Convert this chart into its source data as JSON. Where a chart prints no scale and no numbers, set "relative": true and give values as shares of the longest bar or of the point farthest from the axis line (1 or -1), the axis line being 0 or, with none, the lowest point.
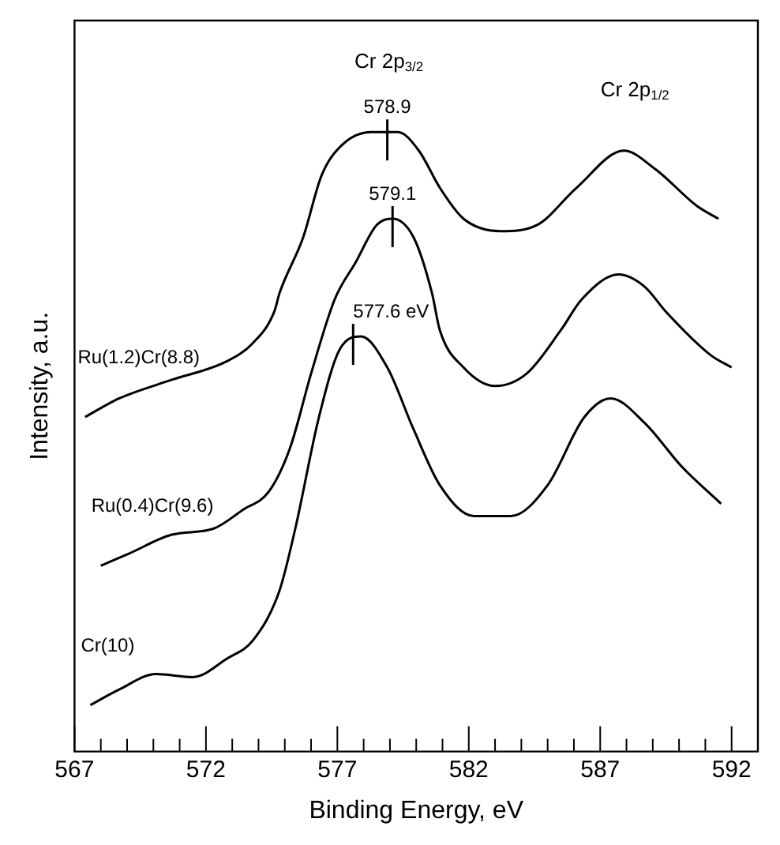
{
  "chart_data": {
    "type": "line",
    "relative": true,
    "xlabel": "Binding Energy, eV",
    "ylabel": "Intensity, a.u.",
    "xlim": [
      567,
      593
    ],
    "xticks": [
      567,
      {
        "value": 568,
        "label": null
      },
      {
        "value": 569,
        "label": null
      },
      {
        "value": 570,
        "label": null
      },
      {
        "value": 571,
        "label": null
      },
      572,
      {
        "value": 573,
        "label": null
      },
      {
        "value": 574,
        "label": null
      },
      {
        "value": 575,
        "label": null
      },
      {
        "value": 576,
        "label": null
      },
      577,
      {
        "value": 578,
        "label": null
      },
      {
        "value": 579,
        "label": null
      },
      {
        "value": 580,
        "label": null
      },
      {
        "value": 581,
        "label": null
      },
      582,
      {
        "value": 583,
        "label": null
      },
      {
        "value": 584,
        "label": null
      },
      {
        "value": 585,
        "label": null
      },
      {
        "value": 586,
        "label": null
      },
      587,
      {
        "value": 588,
        "label": null
      },
      {
        "value": 589,
        "label": null
      },
      {
        "value": 590,
        "label": null
      },
      {
        "value": 591,
        "label": null
      },
      592
    ],
    "grid": false,
    "legend": false,
    "marker": "none",
    "line_style": "solid",
    "series": [
      {
        "name": "Ru(1.2)Cr(8.8)",
        "color": "#000000",
        "x": [
          567.4,
          568.7,
          570.7,
          572.8,
          573.8,
          574.6,
          574.8,
          575.7,
          576.4,
          577.2,
          578.3,
          579.3,
          580.1,
          580.9,
          581.8,
          583.2,
          584.6,
          586.1,
          587.9,
          589.1,
          590.7,
          591.5
        ],
        "values": [
          0.54,
          0.57,
          0.6,
          0.63,
          0.66,
          0.71,
          0.74,
          0.83,
          0.93,
          0.98,
          1.0,
          1.0,
          0.97,
          0.91,
          0.86,
          0.84,
          0.85,
          0.91,
          0.97,
          0.94,
          0.88,
          0.86
        ]
      },
      {
        "name": "Ru(0.4)Cr(9.6)",
        "color": "#000000",
        "x": [
          568.0,
          569.1,
          570.7,
          572.3,
          573.4,
          574.4,
          575.2,
          576.0,
          576.9,
          577.7,
          578.5,
          579.1,
          579.9,
          580.6,
          580.9,
          581.8,
          583.0,
          584.2,
          585.5,
          586.3,
          587.7,
          588.7,
          589.5,
          591.2,
          592.0
        ],
        "values": [
          0.3,
          0.32,
          0.35,
          0.36,
          0.39,
          0.42,
          0.49,
          0.61,
          0.73,
          0.79,
          0.85,
          0.86,
          0.83,
          0.74,
          0.68,
          0.62,
          0.59,
          0.61,
          0.68,
          0.73,
          0.77,
          0.75,
          0.71,
          0.64,
          0.62
        ]
      },
      {
        "name": "Cr(10)",
        "color": "#000000",
        "x": [
          567.6,
          568.7,
          570.1,
          571.5,
          572.8,
          573.8,
          574.8,
          575.4,
          576.3,
          577.1,
          577.9,
          578.9,
          579.9,
          580.9,
          582.2,
          583.6,
          585.0,
          586.4,
          587.4,
          588.7,
          590.1,
          591.6
        ],
        "values": [
          0.075,
          0.1,
          0.125,
          0.12,
          0.15,
          0.18,
          0.26,
          0.36,
          0.54,
          0.65,
          0.67,
          0.62,
          0.52,
          0.43,
          0.38,
          0.38,
          0.43,
          0.54,
          0.57,
          0.53,
          0.46,
          0.4
        ]
      }
    ],
    "annotations": [
      "Cr 2p$_{3/2}$",
      "Cr 2p$_{1/2}$",
      {
        "text": "578.9",
        "x": 578.9,
        "y": 1.0
      },
      {
        "text": "579.1",
        "x": 579.1,
        "y": 0.86
      },
      {
        "text": "577.6 eV",
        "x": 577.6,
        "y": 0.67
      }
    ]
  }
}
